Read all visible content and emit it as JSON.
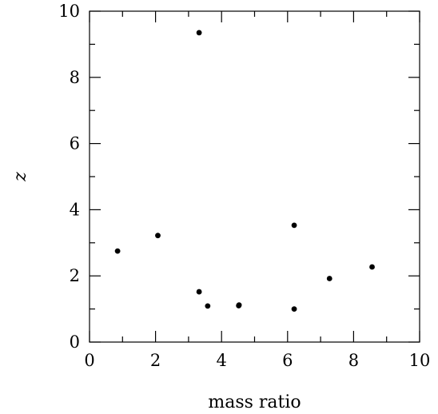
{
  "chart_data": {
    "type": "scatter",
    "title": "",
    "xlabel": "mass ratio",
    "ylabel": "z",
    "xlim": [
      0,
      10
    ],
    "ylim": [
      0,
      10
    ],
    "x_major_ticks": [
      0,
      2,
      4,
      6,
      8,
      10
    ],
    "y_major_ticks": [
      0,
      2,
      4,
      6,
      8,
      10
    ],
    "x_minor_ticks": [
      1,
      3,
      5,
      7,
      9
    ],
    "y_minor_ticks": [
      1,
      3,
      5,
      7,
      9
    ],
    "grid": false,
    "legend": "none",
    "series": [
      {
        "points": [
          {
            "x": 0.85,
            "y": 2.75
          },
          {
            "x": 2.07,
            "y": 3.22
          },
          {
            "x": 3.32,
            "y": 9.35
          },
          {
            "x": 3.32,
            "y": 1.52
          },
          {
            "x": 3.58,
            "y": 1.09
          },
          {
            "x": 4.52,
            "y": 1.1
          },
          {
            "x": 4.53,
            "y": 1.12
          },
          {
            "x": 6.2,
            "y": 3.53
          },
          {
            "x": 6.2,
            "y": 1.0
          },
          {
            "x": 7.27,
            "y": 1.92
          },
          {
            "x": 8.56,
            "y": 2.27
          }
        ],
        "color": "#000000"
      }
    ]
  }
}
